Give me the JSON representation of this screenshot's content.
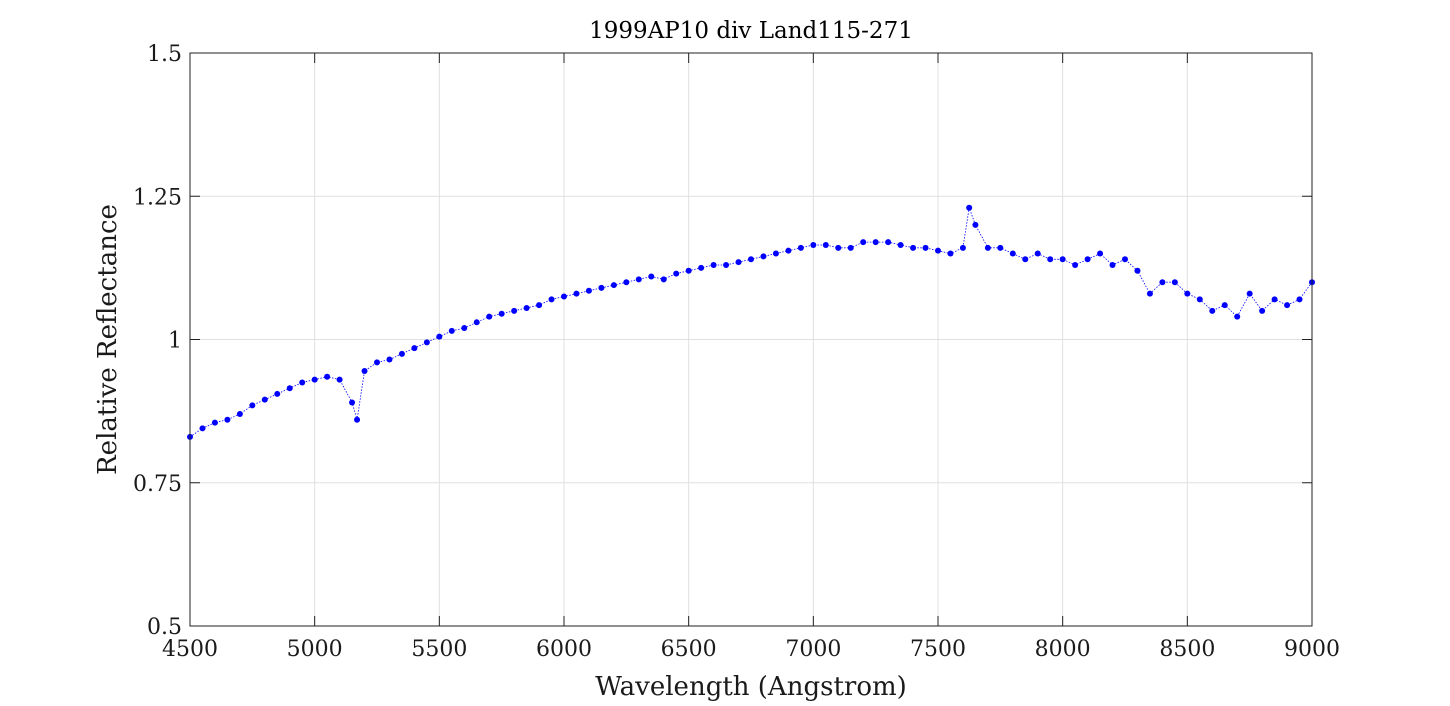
{
  "chart_data": {
    "type": "scatter",
    "title": "1999AP10 div Land115-271",
    "xlabel": "Wavelength (Angstrom)",
    "ylabel": "Relative Reflectance",
    "xlim": [
      4500,
      9000
    ],
    "ylim": [
      0.5,
      1.5
    ],
    "xticks": [
      "4500",
      "5000",
      "5500",
      "6000",
      "6500",
      "7000",
      "7500",
      "8000",
      "8500",
      "9000"
    ],
    "yticks": [
      "0.5",
      "0.75",
      "1",
      "1.25",
      "1.5"
    ],
    "grid": true,
    "marker_color": "#0000ff",
    "series": [
      {
        "x": [
          4500,
          4550,
          4600,
          4650,
          4700,
          4750,
          4800,
          4850,
          4900,
          4950,
          5000,
          5050,
          5100,
          5150,
          5170,
          5200,
          5250,
          5300,
          5350,
          5400,
          5450,
          5500,
          5550,
          5600,
          5650,
          5700,
          5750,
          5800,
          5850,
          5900,
          5950,
          6000,
          6050,
          6100,
          6150,
          6200,
          6250,
          6300,
          6350,
          6400,
          6450,
          6500,
          6550,
          6600,
          6650,
          6700,
          6750,
          6800,
          6850,
          6900,
          6950,
          7000,
          7050,
          7100,
          7150,
          7200,
          7250,
          7300,
          7350,
          7400,
          7450,
          7500,
          7550,
          7600,
          7625,
          7650,
          7700,
          7750,
          7800,
          7850,
          7900,
          7950,
          8000,
          8050,
          8100,
          8150,
          8200,
          8250,
          8300,
          8350,
          8400,
          8450,
          8500,
          8550,
          8600,
          8650,
          8700,
          8750,
          8800,
          8850,
          8900,
          8950,
          9000
        ],
        "y": [
          0.83,
          0.845,
          0.855,
          0.86,
          0.87,
          0.885,
          0.895,
          0.905,
          0.915,
          0.925,
          0.93,
          0.935,
          0.93,
          0.89,
          0.86,
          0.945,
          0.96,
          0.965,
          0.975,
          0.985,
          0.995,
          1.005,
          1.015,
          1.02,
          1.03,
          1.04,
          1.045,
          1.05,
          1.055,
          1.06,
          1.07,
          1.075,
          1.08,
          1.085,
          1.09,
          1.095,
          1.1,
          1.105,
          1.11,
          1.105,
          1.115,
          1.12,
          1.125,
          1.13,
          1.13,
          1.135,
          1.14,
          1.145,
          1.15,
          1.155,
          1.16,
          1.165,
          1.165,
          1.16,
          1.16,
          1.17,
          1.17,
          1.17,
          1.165,
          1.16,
          1.16,
          1.155,
          1.15,
          1.16,
          1.23,
          1.2,
          1.16,
          1.16,
          1.15,
          1.14,
          1.15,
          1.14,
          1.14,
          1.13,
          1.14,
          1.15,
          1.13,
          1.14,
          1.12,
          1.08,
          1.1,
          1.1,
          1.08,
          1.07,
          1.05,
          1.06,
          1.04,
          1.08,
          1.05,
          1.07,
          1.06,
          1.07,
          1.1
        ]
      }
    ]
  }
}
